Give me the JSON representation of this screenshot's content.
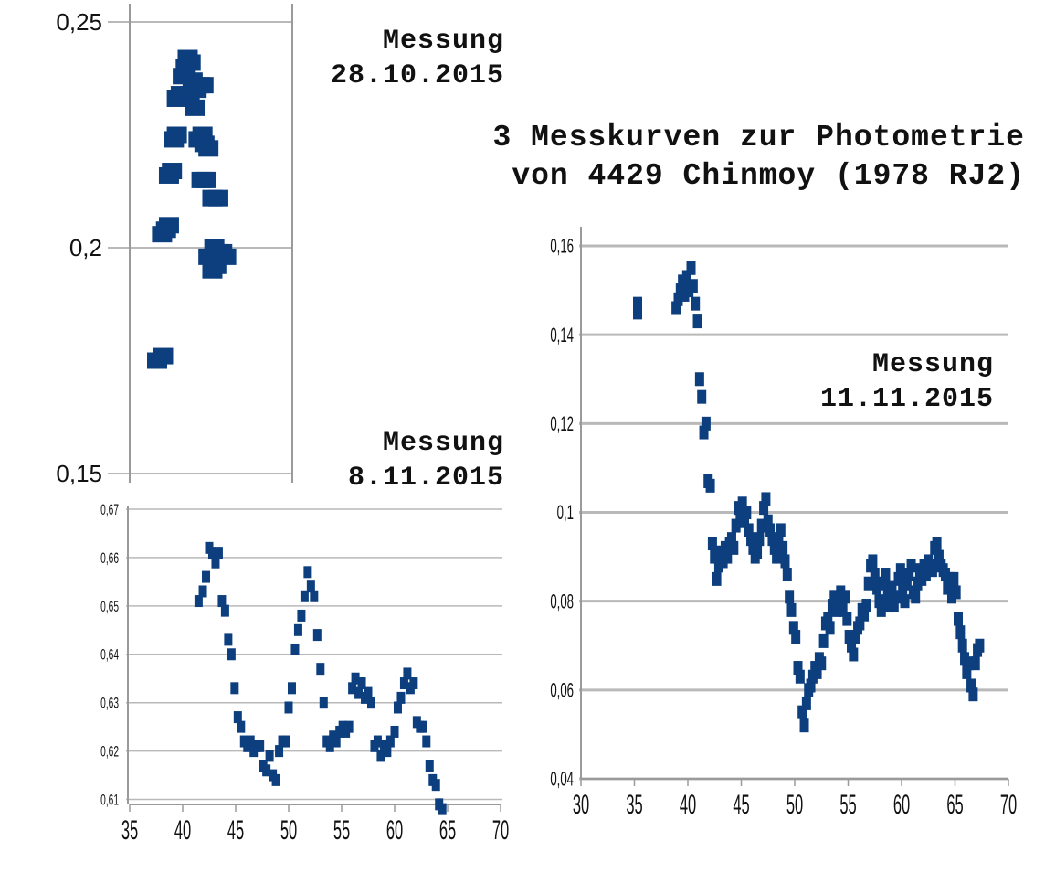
{
  "title": {
    "line1": "3 Messkurven zur Photometrie",
    "line2": "von 4429 Chinmoy (1978 RJ2)"
  },
  "labels": {
    "chart1": {
      "line1": "Messung",
      "line2": "28.10.2015"
    },
    "chart2": {
      "line1": "Messung",
      "line2": "8.11.2015"
    },
    "chart3": {
      "line1": "Messung",
      "line2": "11.11.2015"
    }
  },
  "colors": {
    "marker": "#0d3f7f",
    "grid": "#b9b9b9",
    "axis": "#9a9a9a"
  },
  "chart_data": [
    {
      "type": "scatter",
      "ylim": [
        0.15,
        0.25
      ],
      "yticks": [
        "0,15",
        "0,2",
        "0,25"
      ],
      "yticks_values": [
        0.15,
        0.2,
        0.25
      ],
      "grid": true,
      "points": [
        [
          0.0,
          0.175
        ],
        [
          0.06,
          0.176
        ],
        [
          0.05,
          0.203
        ],
        [
          0.09,
          0.204
        ],
        [
          0.12,
          0.205
        ],
        [
          0.12,
          0.216
        ],
        [
          0.15,
          0.217
        ],
        [
          0.17,
          0.224
        ],
        [
          0.2,
          0.225
        ],
        [
          0.2,
          0.233
        ],
        [
          0.24,
          0.234
        ],
        [
          0.26,
          0.238
        ],
        [
          0.29,
          0.24
        ],
        [
          0.31,
          0.242
        ],
        [
          0.34,
          0.241
        ],
        [
          0.36,
          0.237
        ],
        [
          0.33,
          0.234
        ],
        [
          0.38,
          0.231
        ],
        [
          0.4,
          0.235
        ],
        [
          0.43,
          0.236
        ],
        [
          0.47,
          0.236
        ],
        [
          0.42,
          0.224
        ],
        [
          0.46,
          0.225
        ],
        [
          0.48,
          0.223
        ],
        [
          0.52,
          0.222
        ],
        [
          0.45,
          0.215
        ],
        [
          0.5,
          0.215
        ],
        [
          0.56,
          0.211
        ],
        [
          0.62,
          0.211
        ],
        [
          0.52,
          0.198
        ],
        [
          0.56,
          0.195
        ],
        [
          0.6,
          0.196
        ],
        [
          0.62,
          0.199
        ],
        [
          0.66,
          0.199
        ],
        [
          0.7,
          0.198
        ],
        [
          0.58,
          0.2
        ]
      ]
    },
    {
      "type": "scatter",
      "xlim": [
        35,
        70
      ],
      "ylim": [
        0.605,
        0.67
      ],
      "xticks": [
        35,
        40,
        45,
        50,
        55,
        60,
        65,
        70
      ],
      "yticks": [
        "0,61",
        "0,62",
        "0,63",
        "0,64",
        "0,65",
        "0,66",
        "0,67"
      ],
      "yticks_values": [
        0.61,
        0.62,
        0.63,
        0.64,
        0.65,
        0.66,
        0.67
      ],
      "grid": true,
      "points": [
        [
          41.5,
          0.651
        ],
        [
          41.9,
          0.653
        ],
        [
          42.2,
          0.656
        ],
        [
          42.5,
          0.662
        ],
        [
          42.8,
          0.661
        ],
        [
          43.1,
          0.659
        ],
        [
          43.4,
          0.661
        ],
        [
          43.7,
          0.651
        ],
        [
          44.0,
          0.649
        ],
        [
          44.3,
          0.643
        ],
        [
          44.6,
          0.64
        ],
        [
          44.9,
          0.633
        ],
        [
          45.2,
          0.627
        ],
        [
          45.5,
          0.625
        ],
        [
          45.8,
          0.622
        ],
        [
          46.1,
          0.621
        ],
        [
          46.4,
          0.622
        ],
        [
          46.7,
          0.62
        ],
        [
          47.0,
          0.621
        ],
        [
          47.3,
          0.621
        ],
        [
          47.6,
          0.617
        ],
        [
          47.9,
          0.616
        ],
        [
          48.2,
          0.619
        ],
        [
          48.5,
          0.615
        ],
        [
          48.8,
          0.614
        ],
        [
          49.1,
          0.62
        ],
        [
          49.4,
          0.622
        ],
        [
          49.7,
          0.622
        ],
        [
          50.0,
          0.629
        ],
        [
          50.3,
          0.633
        ],
        [
          50.6,
          0.641
        ],
        [
          50.9,
          0.645
        ],
        [
          51.2,
          0.648
        ],
        [
          51.5,
          0.652
        ],
        [
          51.8,
          0.657
        ],
        [
          52.1,
          0.654
        ],
        [
          52.4,
          0.652
        ],
        [
          52.7,
          0.644
        ],
        [
          53.0,
          0.637
        ],
        [
          53.3,
          0.63
        ],
        [
          53.6,
          0.622
        ],
        [
          53.9,
          0.621
        ],
        [
          54.2,
          0.623
        ],
        [
          54.5,
          0.622
        ],
        [
          54.8,
          0.624
        ],
        [
          55.1,
          0.625
        ],
        [
          55.4,
          0.624
        ],
        [
          55.7,
          0.625
        ],
        [
          56.0,
          0.633
        ],
        [
          56.3,
          0.635
        ],
        [
          56.6,
          0.632
        ],
        [
          56.9,
          0.634
        ],
        [
          57.2,
          0.631
        ],
        [
          57.5,
          0.632
        ],
        [
          57.8,
          0.63
        ],
        [
          58.1,
          0.621
        ],
        [
          58.4,
          0.622
        ],
        [
          58.7,
          0.619
        ],
        [
          59.0,
          0.621
        ],
        [
          59.3,
          0.62
        ],
        [
          59.6,
          0.622
        ],
        [
          60.0,
          0.624
        ],
        [
          60.3,
          0.629
        ],
        [
          60.6,
          0.631
        ],
        [
          60.9,
          0.634
        ],
        [
          61.2,
          0.636
        ],
        [
          61.5,
          0.633
        ],
        [
          61.8,
          0.634
        ],
        [
          62.1,
          0.626
        ],
        [
          62.4,
          0.625
        ],
        [
          62.7,
          0.625
        ],
        [
          63.0,
          0.622
        ],
        [
          63.3,
          0.617
        ],
        [
          63.6,
          0.614
        ],
        [
          63.9,
          0.613
        ],
        [
          64.2,
          0.609
        ],
        [
          64.5,
          0.608
        ]
      ]
    },
    {
      "type": "scatter",
      "xlim": [
        30,
        70
      ],
      "ylim": [
        0.04,
        0.16
      ],
      "xticks": [
        30,
        35,
        40,
        45,
        50,
        55,
        60,
        65,
        70
      ],
      "yticks": [
        "0,04",
        "0,06",
        "0,08",
        "0,1",
        "0,12",
        "0,14",
        "0,16"
      ],
      "yticks_values": [
        0.04,
        0.06,
        0.08,
        0.1,
        0.12,
        0.14,
        0.16
      ],
      "grid": true,
      "points": [
        [
          35.3,
          0.145
        ],
        [
          35.3,
          0.147
        ],
        [
          38.9,
          0.146
        ],
        [
          39.1,
          0.148
        ],
        [
          39.3,
          0.15
        ],
        [
          39.5,
          0.152
        ],
        [
          39.7,
          0.149
        ],
        [
          39.9,
          0.153
        ],
        [
          40.1,
          0.15
        ],
        [
          40.3,
          0.155
        ],
        [
          40.5,
          0.151
        ],
        [
          40.7,
          0.147
        ],
        [
          40.9,
          0.143
        ],
        [
          41.1,
          0.13
        ],
        [
          41.3,
          0.126
        ],
        [
          41.5,
          0.118
        ],
        [
          41.7,
          0.12
        ],
        [
          41.9,
          0.107
        ],
        [
          42.1,
          0.106
        ],
        [
          42.3,
          0.093
        ],
        [
          42.5,
          0.09
        ],
        [
          42.7,
          0.085
        ],
        [
          42.9,
          0.088
        ],
        [
          43.1,
          0.091
        ],
        [
          43.3,
          0.089
        ],
        [
          43.5,
          0.092
        ],
        [
          43.7,
          0.09
        ],
        [
          43.9,
          0.093
        ],
        [
          44.1,
          0.094
        ],
        [
          44.3,
          0.092
        ],
        [
          44.5,
          0.097
        ],
        [
          44.7,
          0.101
        ],
        [
          44.9,
          0.099
        ],
        [
          45.1,
          0.102
        ],
        [
          45.3,
          0.098
        ],
        [
          45.5,
          0.1
        ],
        [
          45.7,
          0.096
        ],
        [
          45.9,
          0.094
        ],
        [
          46.1,
          0.092
        ],
        [
          46.3,
          0.09
        ],
        [
          46.5,
          0.091
        ],
        [
          46.7,
          0.094
        ],
        [
          46.9,
          0.097
        ],
        [
          47.1,
          0.101
        ],
        [
          47.3,
          0.103
        ],
        [
          47.5,
          0.098
        ],
        [
          47.7,
          0.096
        ],
        [
          47.9,
          0.094
        ],
        [
          48.1,
          0.092
        ],
        [
          48.3,
          0.09
        ],
        [
          48.5,
          0.093
        ],
        [
          48.7,
          0.096
        ],
        [
          48.9,
          0.092
        ],
        [
          49.1,
          0.089
        ],
        [
          49.3,
          0.086
        ],
        [
          49.5,
          0.081
        ],
        [
          49.7,
          0.078
        ],
        [
          49.9,
          0.074
        ],
        [
          50.1,
          0.072
        ],
        [
          50.3,
          0.065
        ],
        [
          50.5,
          0.063
        ],
        [
          50.7,
          0.055
        ],
        [
          50.9,
          0.052
        ],
        [
          51.1,
          0.057
        ],
        [
          51.3,
          0.06
        ],
        [
          51.5,
          0.061
        ],
        [
          51.7,
          0.063
        ],
        [
          51.9,
          0.065
        ],
        [
          52.1,
          0.064
        ],
        [
          52.3,
          0.067
        ],
        [
          52.5,
          0.066
        ],
        [
          52.7,
          0.071
        ],
        [
          52.9,
          0.075
        ],
        [
          53.1,
          0.076
        ],
        [
          53.3,
          0.074
        ],
        [
          53.5,
          0.079
        ],
        [
          53.7,
          0.081
        ],
        [
          53.9,
          0.078
        ],
        [
          54.1,
          0.08
        ],
        [
          54.3,
          0.082
        ],
        [
          54.5,
          0.078
        ],
        [
          54.7,
          0.081
        ],
        [
          54.9,
          0.076
        ],
        [
          55.1,
          0.072
        ],
        [
          55.3,
          0.07
        ],
        [
          55.5,
          0.068
        ],
        [
          55.7,
          0.072
        ],
        [
          55.9,
          0.074
        ],
        [
          56.1,
          0.075
        ],
        [
          56.3,
          0.078
        ],
        [
          56.5,
          0.077
        ],
        [
          56.7,
          0.079
        ],
        [
          56.9,
          0.084
        ],
        [
          57.1,
          0.088
        ],
        [
          57.3,
          0.089
        ],
        [
          57.5,
          0.086
        ],
        [
          57.7,
          0.083
        ],
        [
          57.9,
          0.08
        ],
        [
          58.1,
          0.078
        ],
        [
          58.3,
          0.084
        ],
        [
          58.5,
          0.086
        ],
        [
          58.7,
          0.081
        ],
        [
          58.9,
          0.079
        ],
        [
          59.1,
          0.083
        ],
        [
          59.3,
          0.079
        ],
        [
          59.5,
          0.081
        ],
        [
          59.7,
          0.085
        ],
        [
          59.9,
          0.087
        ],
        [
          60.1,
          0.083
        ],
        [
          60.3,
          0.08
        ],
        [
          60.5,
          0.084
        ],
        [
          60.7,
          0.086
        ],
        [
          60.9,
          0.088
        ],
        [
          61.1,
          0.082
        ],
        [
          61.3,
          0.081
        ],
        [
          61.5,
          0.084
        ],
        [
          61.7,
          0.087
        ],
        [
          61.9,
          0.085
        ],
        [
          62.1,
          0.088
        ],
        [
          62.3,
          0.086
        ],
        [
          62.5,
          0.089
        ],
        [
          62.7,
          0.088
        ],
        [
          62.9,
          0.087
        ],
        [
          63.1,
          0.092
        ],
        [
          63.3,
          0.093
        ],
        [
          63.5,
          0.09
        ],
        [
          63.7,
          0.088
        ],
        [
          63.9,
          0.087
        ],
        [
          64.1,
          0.086
        ],
        [
          64.3,
          0.083
        ],
        [
          64.5,
          0.085
        ],
        [
          64.7,
          0.081
        ],
        [
          64.9,
          0.085
        ],
        [
          65.1,
          0.082
        ],
        [
          65.3,
          0.076
        ],
        [
          65.5,
          0.073
        ],
        [
          65.7,
          0.07
        ],
        [
          65.9,
          0.067
        ],
        [
          66.1,
          0.064
        ],
        [
          66.3,
          0.066
        ],
        [
          66.5,
          0.061
        ],
        [
          66.7,
          0.059
        ],
        [
          66.9,
          0.066
        ],
        [
          67.1,
          0.069
        ],
        [
          67.3,
          0.07
        ]
      ]
    }
  ]
}
